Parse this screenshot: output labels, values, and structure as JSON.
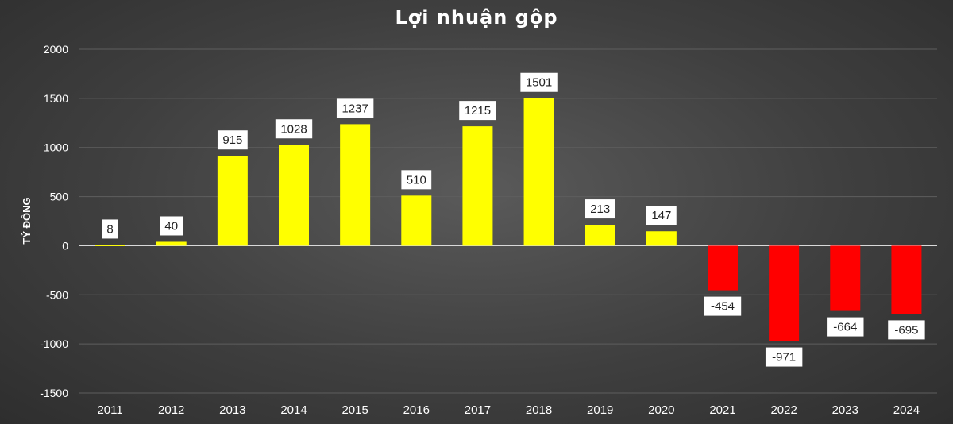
{
  "chart_data": {
    "type": "bar",
    "title": "Lợi nhuận gộp",
    "ylabel": "TỶ ĐỒNG",
    "xlabel": "",
    "ylim": [
      -1500,
      2000
    ],
    "yticks": [
      "2000",
      "1500",
      "1000",
      "500",
      "0",
      "-500",
      "-1000",
      "-1500"
    ],
    "ytick_values": [
      2000,
      1500,
      1000,
      500,
      0,
      -500,
      -1000,
      -1500
    ],
    "categories": [
      "2011",
      "2012",
      "2013",
      "2014",
      "2015",
      "2016",
      "2017",
      "2018",
      "2019",
      "2020",
      "2021",
      "2022",
      "2023",
      "2024"
    ],
    "values": [
      8,
      40,
      915,
      1028,
      1237,
      510,
      1215,
      1501,
      213,
      147,
      -454,
      -971,
      -664,
      -695
    ],
    "data_labels": [
      "8",
      "40",
      "915",
      "1028",
      "1237",
      "510",
      "1215",
      "1501",
      "213",
      "147",
      "-454",
      "-971",
      "-664",
      "-695"
    ],
    "grid": true,
    "legend": "none",
    "colors": {
      "positive": "#ffff00",
      "negative": "#ff0000",
      "background": "#3f3f3f",
      "text": "#ffffff"
    }
  }
}
